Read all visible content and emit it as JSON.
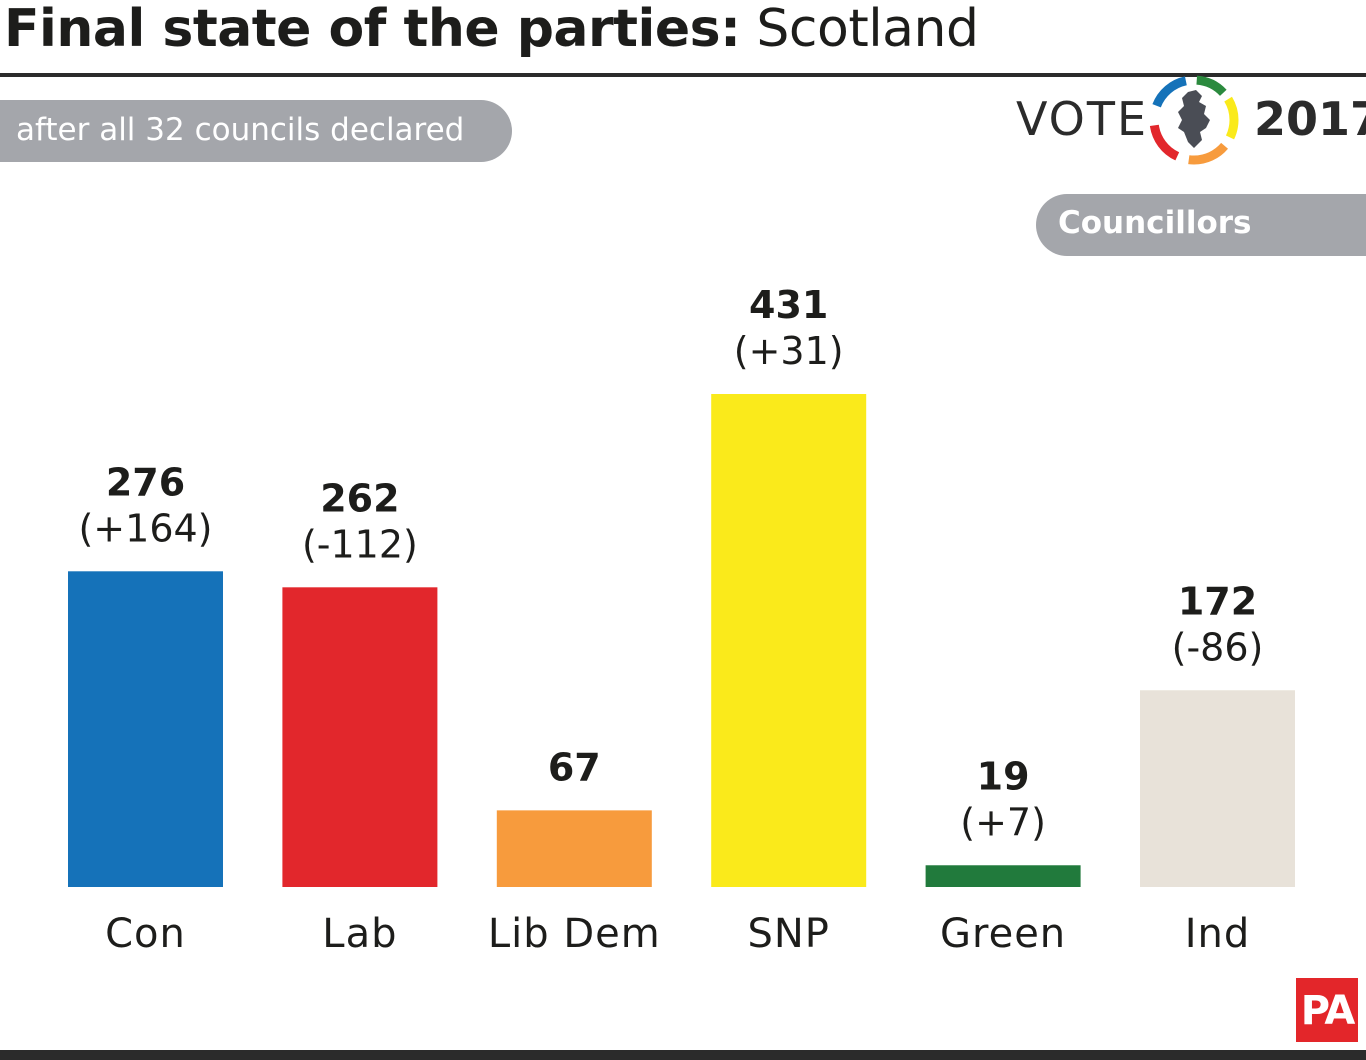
{
  "header": {
    "title_bold": "Final state of the parties:",
    "title_regular": "Scotland",
    "subtitle": "after all 32 councils declared",
    "vote_word": "VOTE",
    "vote_year": "2017",
    "label": "Councillors",
    "logo_icon": "scotland-map-ring-icon",
    "logo_colors": [
      "#1572b9",
      "#e2272c",
      "#f79b3d",
      "#faea1b",
      "#2b8a3e"
    ]
  },
  "footer": {
    "brand": "PA",
    "brand_color": "#e3262a"
  },
  "chart_data": {
    "type": "bar",
    "title": "Final state of the parties: Scotland",
    "subtitle": "after all 32 councils declared",
    "ylabel": "Councillors",
    "categories": [
      "Con",
      "Lab",
      "Lib Dem",
      "SNP",
      "Green",
      "Ind"
    ],
    "values": [
      276,
      262,
      67,
      431,
      19,
      172
    ],
    "changes": [
      "(+164)",
      "(-112)",
      "",
      "(+31)",
      "(+7)",
      "(-86)"
    ],
    "colors": [
      "#1572b9",
      "#e2272c",
      "#f79b3d",
      "#faea1b",
      "#217a3c",
      "#e8e2d9"
    ],
    "ylim": [
      0,
      431
    ],
    "grid": false,
    "legend": "none"
  }
}
